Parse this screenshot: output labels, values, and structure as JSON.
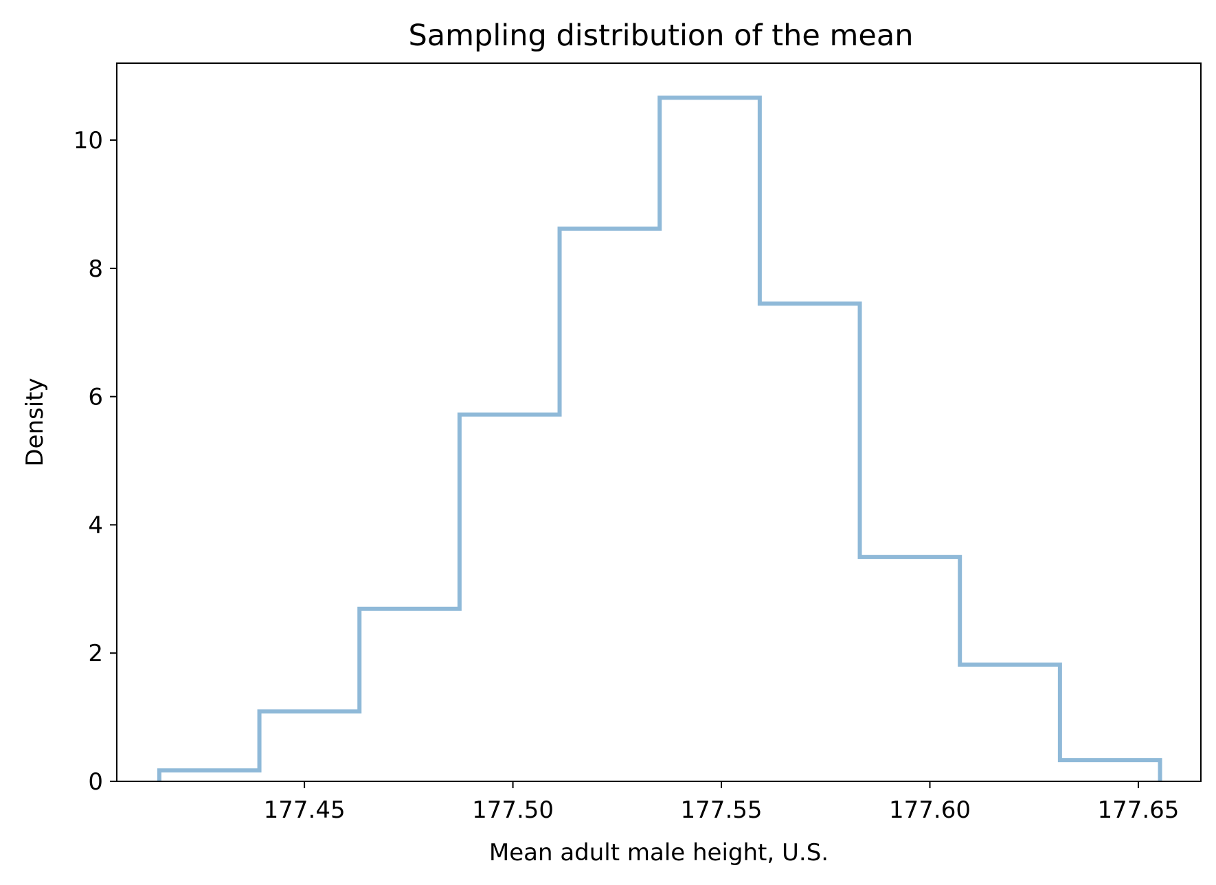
{
  "chart_data": {
    "type": "histogram",
    "histtype": "step",
    "title": "Sampling distribution of the mean",
    "xlabel": "Mean adult male height, U.S.",
    "ylabel": "Density",
    "xlim": [
      177.405,
      177.665
    ],
    "ylim": [
      0,
      11.2
    ],
    "xticks": [
      177.45,
      177.5,
      177.55,
      177.6,
      177.65
    ],
    "xtick_labels": [
      "177.45",
      "177.50",
      "177.55",
      "177.60",
      "177.65"
    ],
    "yticks": [
      0,
      2,
      4,
      6,
      8,
      10
    ],
    "ytick_labels": [
      "0",
      "2",
      "4",
      "6",
      "8",
      "10"
    ],
    "bin_edges": [
      177.4152,
      177.4392,
      177.4632,
      177.4872,
      177.5112,
      177.5352,
      177.5592,
      177.5832,
      177.6072,
      177.6312,
      177.6552
    ],
    "values": [
      0.17,
      1.09,
      2.69,
      5.72,
      8.62,
      10.66,
      7.45,
      3.5,
      1.82,
      0.33
    ],
    "line_color": "#8fb9d8",
    "grid": false
  }
}
